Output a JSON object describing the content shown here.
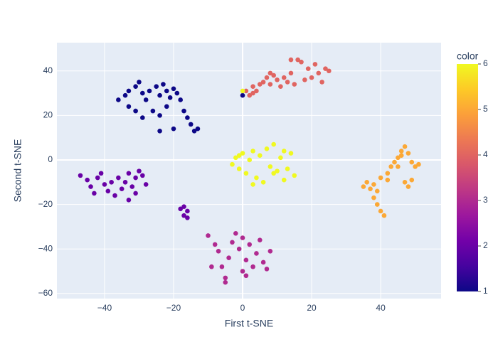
{
  "chart_data": {
    "type": "scatter",
    "x_label": "First t-SNE",
    "y_label": "Second t-SNE",
    "x": [
      -36,
      -34,
      -33,
      -31,
      -30,
      -29,
      -28,
      -27,
      -25,
      -24,
      -23,
      -22,
      -21,
      -20,
      -19,
      -26,
      -24,
      -22,
      -29,
      -31,
      -18,
      -17,
      -16,
      -15,
      -14,
      -13,
      -20,
      -24,
      -33,
      0,
      -47,
      -45,
      -44,
      -43,
      -42,
      -41,
      -40,
      -39,
      -38,
      -37,
      -36,
      -35,
      -34,
      -33,
      -32,
      -31,
      -30,
      -29,
      -33,
      -31,
      -28,
      -17,
      -16,
      -17,
      -18,
      -16,
      -10,
      -8,
      -7,
      -6,
      -5,
      -4,
      -3,
      -2,
      -1,
      0,
      1,
      1,
      2,
      3,
      4,
      5,
      6,
      7,
      8,
      -5,
      -9,
      0,
      1,
      2,
      3,
      3,
      4,
      6,
      7,
      8,
      9,
      10,
      11,
      12,
      13,
      14,
      15,
      16,
      17,
      18,
      19,
      20,
      21,
      22,
      23,
      24,
      25,
      14,
      5,
      8,
      35,
      36,
      37,
      38,
      39,
      40,
      41,
      39,
      40,
      42,
      43,
      44,
      45,
      46,
      47,
      48,
      49,
      50,
      51,
      47,
      48,
      49,
      46,
      45,
      38,
      42,
      -3,
      -2,
      -1,
      0,
      1,
      2,
      3,
      4,
      5,
      6,
      7,
      8,
      9,
      10,
      11,
      12,
      13,
      14,
      15,
      0,
      3,
      9,
      12,
      -1
    ],
    "y": [
      27,
      29,
      24,
      33,
      35,
      30,
      27,
      31,
      33,
      29,
      34,
      31,
      28,
      32,
      30,
      22,
      20,
      24,
      19,
      22,
      27,
      22,
      19,
      16,
      13,
      14,
      14,
      13,
      31,
      29,
      -7,
      -9,
      -12,
      -15,
      -8,
      -6,
      -11,
      -14,
      -10,
      -16,
      -8,
      -13,
      -10,
      -6,
      -12,
      -8,
      -5,
      -7,
      -18,
      -15,
      -11,
      -21,
      -23,
      -25,
      -22,
      -26,
      -34,
      -38,
      -41,
      -48,
      -53,
      -44,
      -37,
      -33,
      -40,
      -50,
      -45,
      -52,
      -38,
      -48,
      -42,
      -36,
      -46,
      -49,
      -41,
      -55,
      -48,
      -35,
      31,
      29,
      30,
      33,
      31,
      35,
      37,
      34,
      38,
      36,
      33,
      37,
      35,
      39,
      34,
      45,
      44,
      36,
      41,
      37,
      43,
      39,
      35,
      41,
      40,
      45,
      34,
      39,
      -12,
      -10,
      -13,
      -17,
      -20,
      -23,
      -25,
      -14,
      -8,
      -6,
      -3,
      -1,
      1,
      4,
      6,
      3,
      -1,
      -3,
      -2,
      -10,
      -12,
      -9,
      2,
      -3,
      -11,
      -9,
      -2,
      1,
      -4,
      3,
      -6,
      0,
      4,
      -8,
      2,
      -10,
      5,
      -3,
      7,
      -5,
      1,
      -9,
      -4,
      3,
      -7,
      31,
      -11,
      -6,
      4,
      2
    ],
    "color_values": [
      1,
      1,
      1,
      1,
      1,
      1,
      1,
      1,
      1,
      1,
      1,
      1,
      1,
      1,
      1,
      1,
      1,
      1,
      1,
      1,
      1,
      1,
      1,
      1,
      1,
      1,
      1,
      1,
      1,
      1,
      2,
      2,
      2,
      2,
      2,
      2,
      2,
      2,
      2,
      2,
      2,
      2,
      2,
      2,
      2,
      2,
      2,
      2,
      2,
      2,
      2,
      2,
      2,
      2,
      2,
      2,
      3,
      3,
      3,
      3,
      3,
      3,
      3,
      3,
      3,
      3,
      3,
      3,
      3,
      3,
      3,
      3,
      3,
      3,
      3,
      3,
      3,
      3,
      4,
      4,
      4,
      4,
      4,
      4,
      4,
      4,
      4,
      4,
      4,
      4,
      4,
      4,
      4,
      4,
      4,
      4,
      4,
      4,
      4,
      4,
      4,
      4,
      4,
      4,
      4,
      4,
      5,
      5,
      5,
      5,
      5,
      5,
      5,
      5,
      5,
      5,
      5,
      5,
      5,
      5,
      5,
      5,
      5,
      5,
      5,
      5,
      5,
      5,
      5,
      5,
      5,
      5,
      6,
      6,
      6,
      6,
      6,
      6,
      6,
      6,
      6,
      6,
      6,
      6,
      6,
      6,
      6,
      6,
      6,
      6,
      6,
      6,
      6,
      6,
      6,
      6
    ],
    "colorscale": [
      "#0d0887",
      "#46039f",
      "#7201a8",
      "#9c179e",
      "#bd3786",
      "#d8576b",
      "#ed7953",
      "#fb9f3a",
      "#fdca26",
      "#f0f921"
    ],
    "xlim": [
      -53.8,
      57.5
    ],
    "xticks": [
      {
        "value": -40,
        "label": "−40"
      },
      {
        "value": -20,
        "label": "−20"
      },
      0,
      20,
      40
    ],
    "ylim": [
      -62.3,
      52.7
    ],
    "yticks": [
      {
        "value": -60,
        "label": "−60"
      },
      {
        "value": -40,
        "label": "−40"
      },
      {
        "value": -20,
        "label": "−20"
      },
      0,
      20,
      40
    ],
    "grid": true,
    "colorbar": {
      "title": "color",
      "range": [
        1,
        6
      ],
      "ticks": [
        1,
        2,
        3,
        4,
        5,
        6
      ]
    }
  }
}
